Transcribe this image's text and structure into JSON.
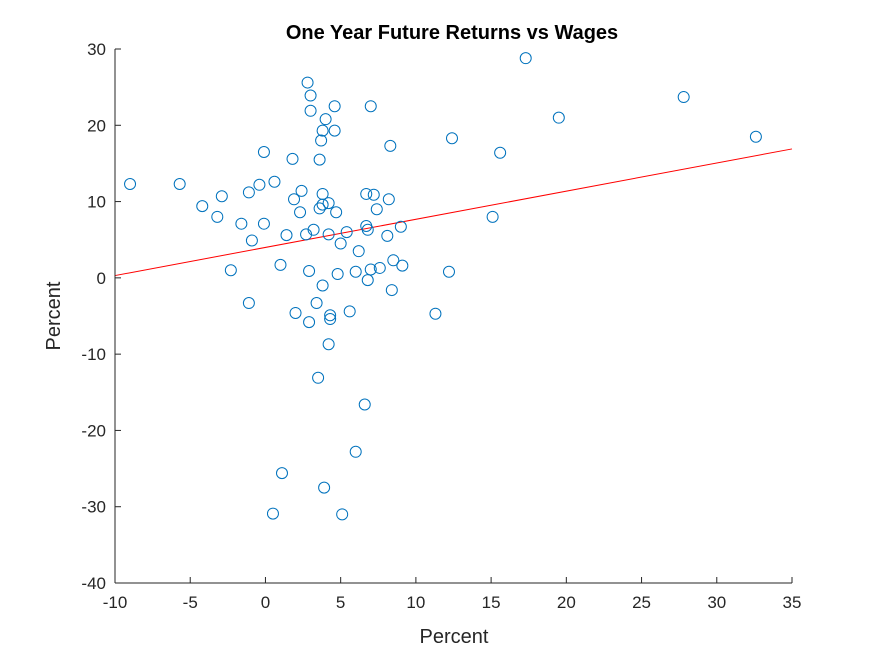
{
  "chart_data": {
    "type": "scatter",
    "title": "One Year Future Returns vs Wages",
    "xlabel": "Percent",
    "ylabel": "Percent",
    "xlim": [
      -10,
      35
    ],
    "ylim": [
      -40,
      30
    ],
    "xticks": [
      -10,
      -5,
      0,
      5,
      10,
      15,
      20,
      25,
      30,
      35
    ],
    "yticks": [
      -40,
      -30,
      -20,
      -10,
      0,
      10,
      20,
      30
    ],
    "grid": false,
    "marker_color": "#0072BD",
    "fit_line_color": "#FF0000",
    "series": [
      {
        "type": "scatter",
        "points": [
          [
            -9.0,
            12.3
          ],
          [
            -5.7,
            12.3
          ],
          [
            -4.2,
            9.4
          ],
          [
            -3.2,
            8.0
          ],
          [
            -2.9,
            10.7
          ],
          [
            -2.3,
            1.0
          ],
          [
            -1.6,
            7.1
          ],
          [
            -1.1,
            11.2
          ],
          [
            -1.1,
            -3.3
          ],
          [
            -0.9,
            4.9
          ],
          [
            -0.4,
            12.2
          ],
          [
            -0.1,
            16.5
          ],
          [
            -0.1,
            7.1
          ],
          [
            0.6,
            12.6
          ],
          [
            0.5,
            -30.9
          ],
          [
            1.0,
            1.7
          ],
          [
            1.1,
            -25.6
          ],
          [
            1.4,
            5.6
          ],
          [
            1.8,
            15.6
          ],
          [
            1.9,
            10.3
          ],
          [
            2.0,
            -4.6
          ],
          [
            2.3,
            8.6
          ],
          [
            2.4,
            11.4
          ],
          [
            2.7,
            5.7
          ],
          [
            2.8,
            25.6
          ],
          [
            2.9,
            -5.8
          ],
          [
            2.9,
            0.9
          ],
          [
            3.0,
            23.9
          ],
          [
            3.0,
            21.9
          ],
          [
            3.2,
            6.3
          ],
          [
            3.4,
            -3.3
          ],
          [
            3.5,
            -13.1
          ],
          [
            3.6,
            15.5
          ],
          [
            3.6,
            9.1
          ],
          [
            3.7,
            18.0
          ],
          [
            3.8,
            11.0
          ],
          [
            3.8,
            9.6
          ],
          [
            3.8,
            19.3
          ],
          [
            3.8,
            -1.0
          ],
          [
            3.9,
            -27.5
          ],
          [
            4.0,
            20.8
          ],
          [
            4.2,
            9.8
          ],
          [
            4.2,
            5.7
          ],
          [
            4.2,
            -8.7
          ],
          [
            4.3,
            -5.4
          ],
          [
            4.3,
            -4.9
          ],
          [
            4.6,
            22.5
          ],
          [
            4.6,
            19.3
          ],
          [
            4.7,
            8.6
          ],
          [
            4.8,
            0.5
          ],
          [
            5.0,
            4.5
          ],
          [
            5.1,
            -31.0
          ],
          [
            5.4,
            6.0
          ],
          [
            5.6,
            -4.4
          ],
          [
            6.0,
            -22.8
          ],
          [
            6.0,
            0.8
          ],
          [
            6.2,
            3.5
          ],
          [
            6.6,
            -16.6
          ],
          [
            6.7,
            11.0
          ],
          [
            6.7,
            6.8
          ],
          [
            6.8,
            6.3
          ],
          [
            6.8,
            -0.3
          ],
          [
            7.0,
            22.5
          ],
          [
            7.0,
            1.1
          ],
          [
            7.2,
            10.9
          ],
          [
            7.4,
            9.0
          ],
          [
            7.6,
            1.3
          ],
          [
            8.1,
            5.5
          ],
          [
            8.2,
            10.3
          ],
          [
            8.3,
            17.3
          ],
          [
            8.4,
            -1.6
          ],
          [
            8.5,
            2.3
          ],
          [
            9.0,
            6.7
          ],
          [
            9.1,
            1.6
          ],
          [
            11.3,
            -4.7
          ],
          [
            12.2,
            0.8
          ],
          [
            12.4,
            18.3
          ],
          [
            15.1,
            8.0
          ],
          [
            15.6,
            16.4
          ],
          [
            17.3,
            28.8
          ],
          [
            19.5,
            21.0
          ],
          [
            27.8,
            23.7
          ],
          [
            32.6,
            18.5
          ]
        ]
      },
      {
        "type": "line",
        "points": [
          [
            -10,
            0.3
          ],
          [
            35,
            16.9
          ]
        ]
      }
    ]
  }
}
